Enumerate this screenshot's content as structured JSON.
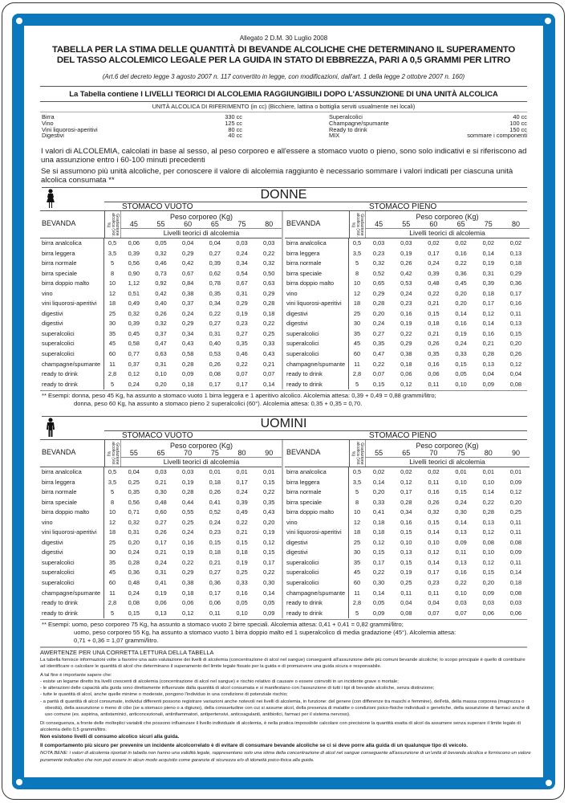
{
  "header": {
    "allegato": "Allegato 2 D.M. 30 Luglio 2008",
    "title_line1": "TABELLA PER LA STIMA DELLE QUANTITÀ DI BEVANDE ALCOLICHE CHE DETERMINANO IL SUPERAMENTO",
    "title_line2": "DEL TASSO ALCOLEMICO LEGALE PER LA GUIDA IN STATO DI EBBREZZA, PARI A 0,5 GRAMMI PER LITRO",
    "reference": "(Art.6 del decreto legge 3 agosto 2007 n. 117 convertito in legge, con modificazioni, dall'art. 1 della legge 2 ottobre 2007 n. 160)",
    "subtitle": "La Tabella contiene I LIVELLI TEORICI DI ALCOLEMIA RAGGIUNGIBILI DOPO L'ASSUNZIONE DI UNA UNITÀ ALCOLICA"
  },
  "units": {
    "heading": "UNITÀ ALCOLICA DI RIFERIMENTO (in cc) (Bicchiere, lattina o bottiglia serviti usualmente nei locali)",
    "left": [
      {
        "label": "Birra",
        "value": "330 cc"
      },
      {
        "label": "Vino",
        "value": "125 cc"
      },
      {
        "label": "Vini liquorosi-aperitivi",
        "value": "80 cc"
      },
      {
        "label": "Digestivi",
        "value": "40 cc"
      }
    ],
    "right": [
      {
        "label": "Superalcolici",
        "value": "40 cc"
      },
      {
        "label": "Champagne/spumante",
        "value": "100 cc"
      },
      {
        "label": "Ready to drink",
        "value": "150 cc"
      },
      {
        "label": "MIX",
        "value": "sommare i componenti"
      }
    ]
  },
  "intro": {
    "p1": "I valori di ALCOLEMIA, calcolati in base al sesso, al peso corporeo e all'essere  a stomaco vuoto o pieno, sono solo indicativi e si riferiscono ad una assunzione entro i 60-100 minuti precedenti",
    "p2": "Se si assumono più unità alcoliche, per conoscere il valore di alcolemia raggiunto è necessario sommare i valori indicati per ciascuna unità alcolica consumata **"
  },
  "labels": {
    "bevanda": "BEVANDA",
    "gradazione": "Gradazione alcolica (Vol. %)",
    "peso": "Peso corporeo (Kg)",
    "livelli": "Livelli teorici di alcolemia",
    "vuoto": "STOMACO VUOTO",
    "pieno": "STOMACO PIENO"
  },
  "beverages": [
    {
      "name": "birra analcolica",
      "grad": "0,5"
    },
    {
      "name": "birra leggera",
      "grad": "3,5"
    },
    {
      "name": "birra normale",
      "grad": "5"
    },
    {
      "name": "birra speciale",
      "grad": "8"
    },
    {
      "name": "birra doppio malto",
      "grad": "10"
    },
    {
      "name": "vino",
      "grad": "12"
    },
    {
      "name": "vini liquorosi-aperitivi",
      "grad": "18"
    },
    {
      "name": "digestivi",
      "grad": "25"
    },
    {
      "name": "digestivi",
      "grad": "30"
    },
    {
      "name": "superalcolici",
      "grad": "35"
    },
    {
      "name": "superalcolici",
      "grad": "45"
    },
    {
      "name": "superalcolici",
      "grad": "60"
    },
    {
      "name": "champagne/spumante",
      "grad": "11"
    },
    {
      "name": "ready to drink",
      "grad": "2,8"
    },
    {
      "name": "ready to drink",
      "grad": "5"
    }
  ],
  "donne": {
    "title": "DONNE",
    "icon": "woman-icon",
    "weights": [
      "45",
      "55",
      "60",
      "65",
      "75",
      "80"
    ],
    "vuoto": [
      [
        "0,06",
        "0,05",
        "0,04",
        "0,04",
        "0,03",
        "0,03"
      ],
      [
        "0,39",
        "0,32",
        "0,29",
        "0,27",
        "0,24",
        "0,22"
      ],
      [
        "0,56",
        "0,46",
        "0,42",
        "0,39",
        "0,34",
        "0,32"
      ],
      [
        "0,90",
        "0,73",
        "0,67",
        "0,62",
        "0,54",
        "0,50"
      ],
      [
        "1,12",
        "0,92",
        "0,84",
        "0,78",
        "0,67",
        "0,63"
      ],
      [
        "0,51",
        "0,42",
        "0,38",
        "0,35",
        "0,31",
        "0,29"
      ],
      [
        "0,49",
        "0,40",
        "0,37",
        "0,34",
        "0,29",
        "0,28"
      ],
      [
        "0,32",
        "0,26",
        "0,24",
        "0,22",
        "0,19",
        "0,18"
      ],
      [
        "0,39",
        "0,32",
        "0,29",
        "0,27",
        "0,23",
        "0,22"
      ],
      [
        "0,45",
        "0,37",
        "0,34",
        "0,31",
        "0,27",
        "0,25"
      ],
      [
        "0,58",
        "0,47",
        "0,43",
        "0,40",
        "0,35",
        "0,33"
      ],
      [
        "0,77",
        "0,63",
        "0,58",
        "0,53",
        "0,46",
        "0,43"
      ],
      [
        "0,37",
        "0,31",
        "0,28",
        "0,26",
        "0,22",
        "0,21"
      ],
      [
        "0,12",
        "0,10",
        "0,09",
        "0,08",
        "0,07",
        "0,07"
      ],
      [
        "0,24",
        "0,20",
        "0,18",
        "0,17",
        "0,17",
        "0,14"
      ]
    ],
    "pieno": [
      [
        "0,03",
        "0,03",
        "0,02",
        "0,02",
        "0,02",
        "0,02"
      ],
      [
        "0,23",
        "0,19",
        "0,17",
        "0,16",
        "0,14",
        "0,13"
      ],
      [
        "0,32",
        "0,26",
        "0,24",
        "0,22",
        "0,19",
        "0,18"
      ],
      [
        "0,52",
        "0,42",
        "0,39",
        "0,36",
        "0,31",
        "0,29"
      ],
      [
        "0,65",
        "0,53",
        "0,48",
        "0,45",
        "0,39",
        "0,36"
      ],
      [
        "0,29",
        "0,24",
        "0,22",
        "0,20",
        "0,18",
        "0,17"
      ],
      [
        "0,28",
        "0,23",
        "0,21",
        "0,20",
        "0,17",
        "0,16"
      ],
      [
        "0,20",
        "0,16",
        "0,15",
        "0,14",
        "0,12",
        "0,11"
      ],
      [
        "0,24",
        "0,19",
        "0,18",
        "0,16",
        "0,14",
        "0,13"
      ],
      [
        "0,27",
        "0,22",
        "0,21",
        "0,19",
        "0,16",
        "0,15"
      ],
      [
        "0,35",
        "0,29",
        "0,26",
        "0,24",
        "0,21",
        "0,20"
      ],
      [
        "0,47",
        "0,38",
        "0,35",
        "0,33",
        "0,28",
        "0,26"
      ],
      [
        "0,22",
        "0,18",
        "0,16",
        "0,15",
        "0,13",
        "0,12"
      ],
      [
        "0,07",
        "0,06",
        "0,06",
        "0,05",
        "0,04",
        "0,04"
      ],
      [
        "0,15",
        "0,12",
        "0,11",
        "0,10",
        "0,09",
        "0,08"
      ]
    ],
    "example_line1": "** Esempi: donna, peso 45 Kg, ha assunto a stomaco vuoto 1 birra leggera e 1 aperitivo alcolico. Alcolemia attesa: 0,39 + 0,49 = 0,88 grammi/litro;",
    "example_line2": "donna, peso 60 Kg, ha assunto a stomaco pieno 2 superalcolici (60°). Alcolemia attesa: 0,35 + 0,35 = 0,70."
  },
  "uomini": {
    "title": "UOMINI",
    "icon": "man-icon",
    "weights": [
      "55",
      "65",
      "70",
      "75",
      "80",
      "90"
    ],
    "vuoto": [
      [
        "0,04",
        "0,03",
        "0,03",
        "0,01",
        "0,01",
        "0,01"
      ],
      [
        "0,25",
        "0,21",
        "0,19",
        "0,18",
        "0,17",
        "0,15"
      ],
      [
        "0,35",
        "0,30",
        "0,28",
        "0,26",
        "0,24",
        "0,22"
      ],
      [
        "0,56",
        "0,48",
        "0,44",
        "0,41",
        "0,39",
        "0,35"
      ],
      [
        "0,71",
        "0,60",
        "0,55",
        "0,52",
        "0,49",
        "0,43"
      ],
      [
        "0,32",
        "0,27",
        "0,25",
        "0,24",
        "0,22",
        "0,20"
      ],
      [
        "0,31",
        "0,26",
        "0,24",
        "0,23",
        "0,21",
        "0,19"
      ],
      [
        "0,20",
        "0,17",
        "0,16",
        "0,15",
        "0,15",
        "0,12"
      ],
      [
        "0,24",
        "0,21",
        "0,19",
        "0,18",
        "0,18",
        "0,15"
      ],
      [
        "0,28",
        "0,24",
        "0,22",
        "0,21",
        "0,19",
        "0,17"
      ],
      [
        "0,36",
        "0,31",
        "0,29",
        "0,27",
        "0,25",
        "0,22"
      ],
      [
        "0,48",
        "0,41",
        "0,38",
        "0,36",
        "0,33",
        "0,30"
      ],
      [
        "0,24",
        "0,19",
        "0,18",
        "0,17",
        "0,16",
        "0,14"
      ],
      [
        "0,08",
        "0,06",
        "0,06",
        "0,06",
        "0,05",
        "0,05"
      ],
      [
        "0,15",
        "0,13",
        "0,12",
        "0,11",
        "0,10",
        "0,09"
      ]
    ],
    "pieno": [
      [
        "0,02",
        "0,02",
        "0,02",
        "0,01",
        "0,01",
        "0,01"
      ],
      [
        "0,14",
        "0,12",
        "0,11",
        "0,10",
        "0,10",
        "0,09"
      ],
      [
        "0,20",
        "0,17",
        "0,16",
        "0,15",
        "0,14",
        "0,12"
      ],
      [
        "0,33",
        "0,28",
        "0,26",
        "0,24",
        "0,22",
        "0,20"
      ],
      [
        "0,41",
        "0,34",
        "0,32",
        "0,30",
        "0,28",
        "0,25"
      ],
      [
        "0,18",
        "0,16",
        "0,15",
        "0,14",
        "0,13",
        "0,11"
      ],
      [
        "0,18",
        "0,15",
        "0,14",
        "0,13",
        "0,12",
        "0,11"
      ],
      [
        "0,12",
        "0,10",
        "0,10",
        "0,09",
        "0,08",
        "0,08"
      ],
      [
        "0,15",
        "0,13",
        "0,12",
        "0,11",
        "0,10",
        "0,09"
      ],
      [
        "0,17",
        "0,15",
        "0,14",
        "0,13",
        "0,12",
        "0,11"
      ],
      [
        "0,22",
        "0,19",
        "0,17",
        "0,16",
        "0,15",
        "0,14"
      ],
      [
        "0,30",
        "0,25",
        "0,23",
        "0,22",
        "0,20",
        "0,18"
      ],
      [
        "0,14",
        "0,11",
        "0,11",
        "0,10",
        "0,09",
        "0,08"
      ],
      [
        "0,05",
        "0,04",
        "0,04",
        "0,03",
        "0,03",
        "0,03"
      ],
      [
        "0,09",
        "0,08",
        "0,07",
        "0,07",
        "0,06",
        "0,06"
      ]
    ],
    "example_line1": "** Esempi: uomo, peso corporeo 75 Kg, ha assunto a stomaco vuoto 2 birre speciali. Alcolemia attesa: 0,41 + 0,41 = 0,82 grammi/litro;",
    "example_line2": "uomo, peso corporeo 55 Kg, ha assunto a stomaco vuoto 1 birra doppio malto ed 1 superalcolico di media gradazione (45°). Alcolemia attesa:",
    "example_line3": "0,71 + 0,36 = 1,07 grammi/litro."
  },
  "avvertenze": {
    "title": "AWERTENZE PER UNA CORRETTA LETTURA DELLA TABELLA",
    "intro": "La tabella fornisce informazioni volte a favorire una auto valutazione dei livelli di alcolemia (concentrazione di alcol nel sangue) conseguenti all'assunzione delle più comuni bevande alcoliche; lo scopo principale è quello di contribuire ad identificare o calcolare le quantità di alcol che determinano il superamento del limite legale fissato per la guida e di promuovere una guida sicura e responsabile.",
    "lead": "A  tal fine è importante sapere che:",
    "bullets": [
      "- esiste un legame diretto tra livelli crescenti di alcolemia (concentrazione di alcol nel sangue) e rischio relativo di causare o essere coinvolti in un incidente grave o mortale;",
      "- le alterazioni delle capacità alla guida  sono direttamente influenzate dalla quantità di alcol consumata e si manifestano con l'assunzione di tutti i tipi di bevande alcoliche, senza distinzione;",
      "- tutte le quantità di alcol, anche quelle minime o moderate, pongono l'individuo in una condizione di potenziale rischio;",
      "- a parità di quantità di alcol consumate, individui differenti possono registrare variazioni anche notevoli nei livelli di alcolemia, in funzione: del genere (con differenze tra maschi e femmine), dell'età, della massa corporea (magrezza o obesità), della assunzione o meno di cibo (se a stomaco pieno o a digiuno), della consuetudine con cui si assume alcol, della presenza di malattie o condizioni psico-fisiche individuali o genetiche, della assunzione di farmaci anche di uso comune (es. aspirina, antistaminici, anticoncezionali, antinfiammatori, antipertensivi, anticoagulanti, antibiotici, farmaci per il sistema nervoso)."
    ],
    "consequence": "Di conseguenza, a fronte delle molteplici variabili che possono influenzare il livello individuale di alcolemia, è nella pratica impossibile calcolare con precisione la quantità esatta di alcol da assumere senza superare il limite legale di alcolemia dello 0,5 grammi/litro.",
    "bold1": "Non esistono livelli di consumo alcolico sicuri alla guida.",
    "bold2": "Il comportamento più sicuro per prevenire un incidente alcolcorrelato è di evitare di consumare bevande alcoliche se ci si deve porre alla guida di un qualunque tipo di veicolo.",
    "nota": "NOTA BENE: i valori di alcolemia riportati in tabella non hanno una validità legale, rappresentano solo una stima della concentrazione di alcol nel sangue conseguente all'assunzione di un'unità di bevanda alcolica e forniscono un valore puramente indicativo che non può essere in alcun modo acquisito come garanzia di sicurezza e/o di idoneità psico-fisica alla guida."
  },
  "colors": {
    "frame_blue": "#0b78be"
  }
}
